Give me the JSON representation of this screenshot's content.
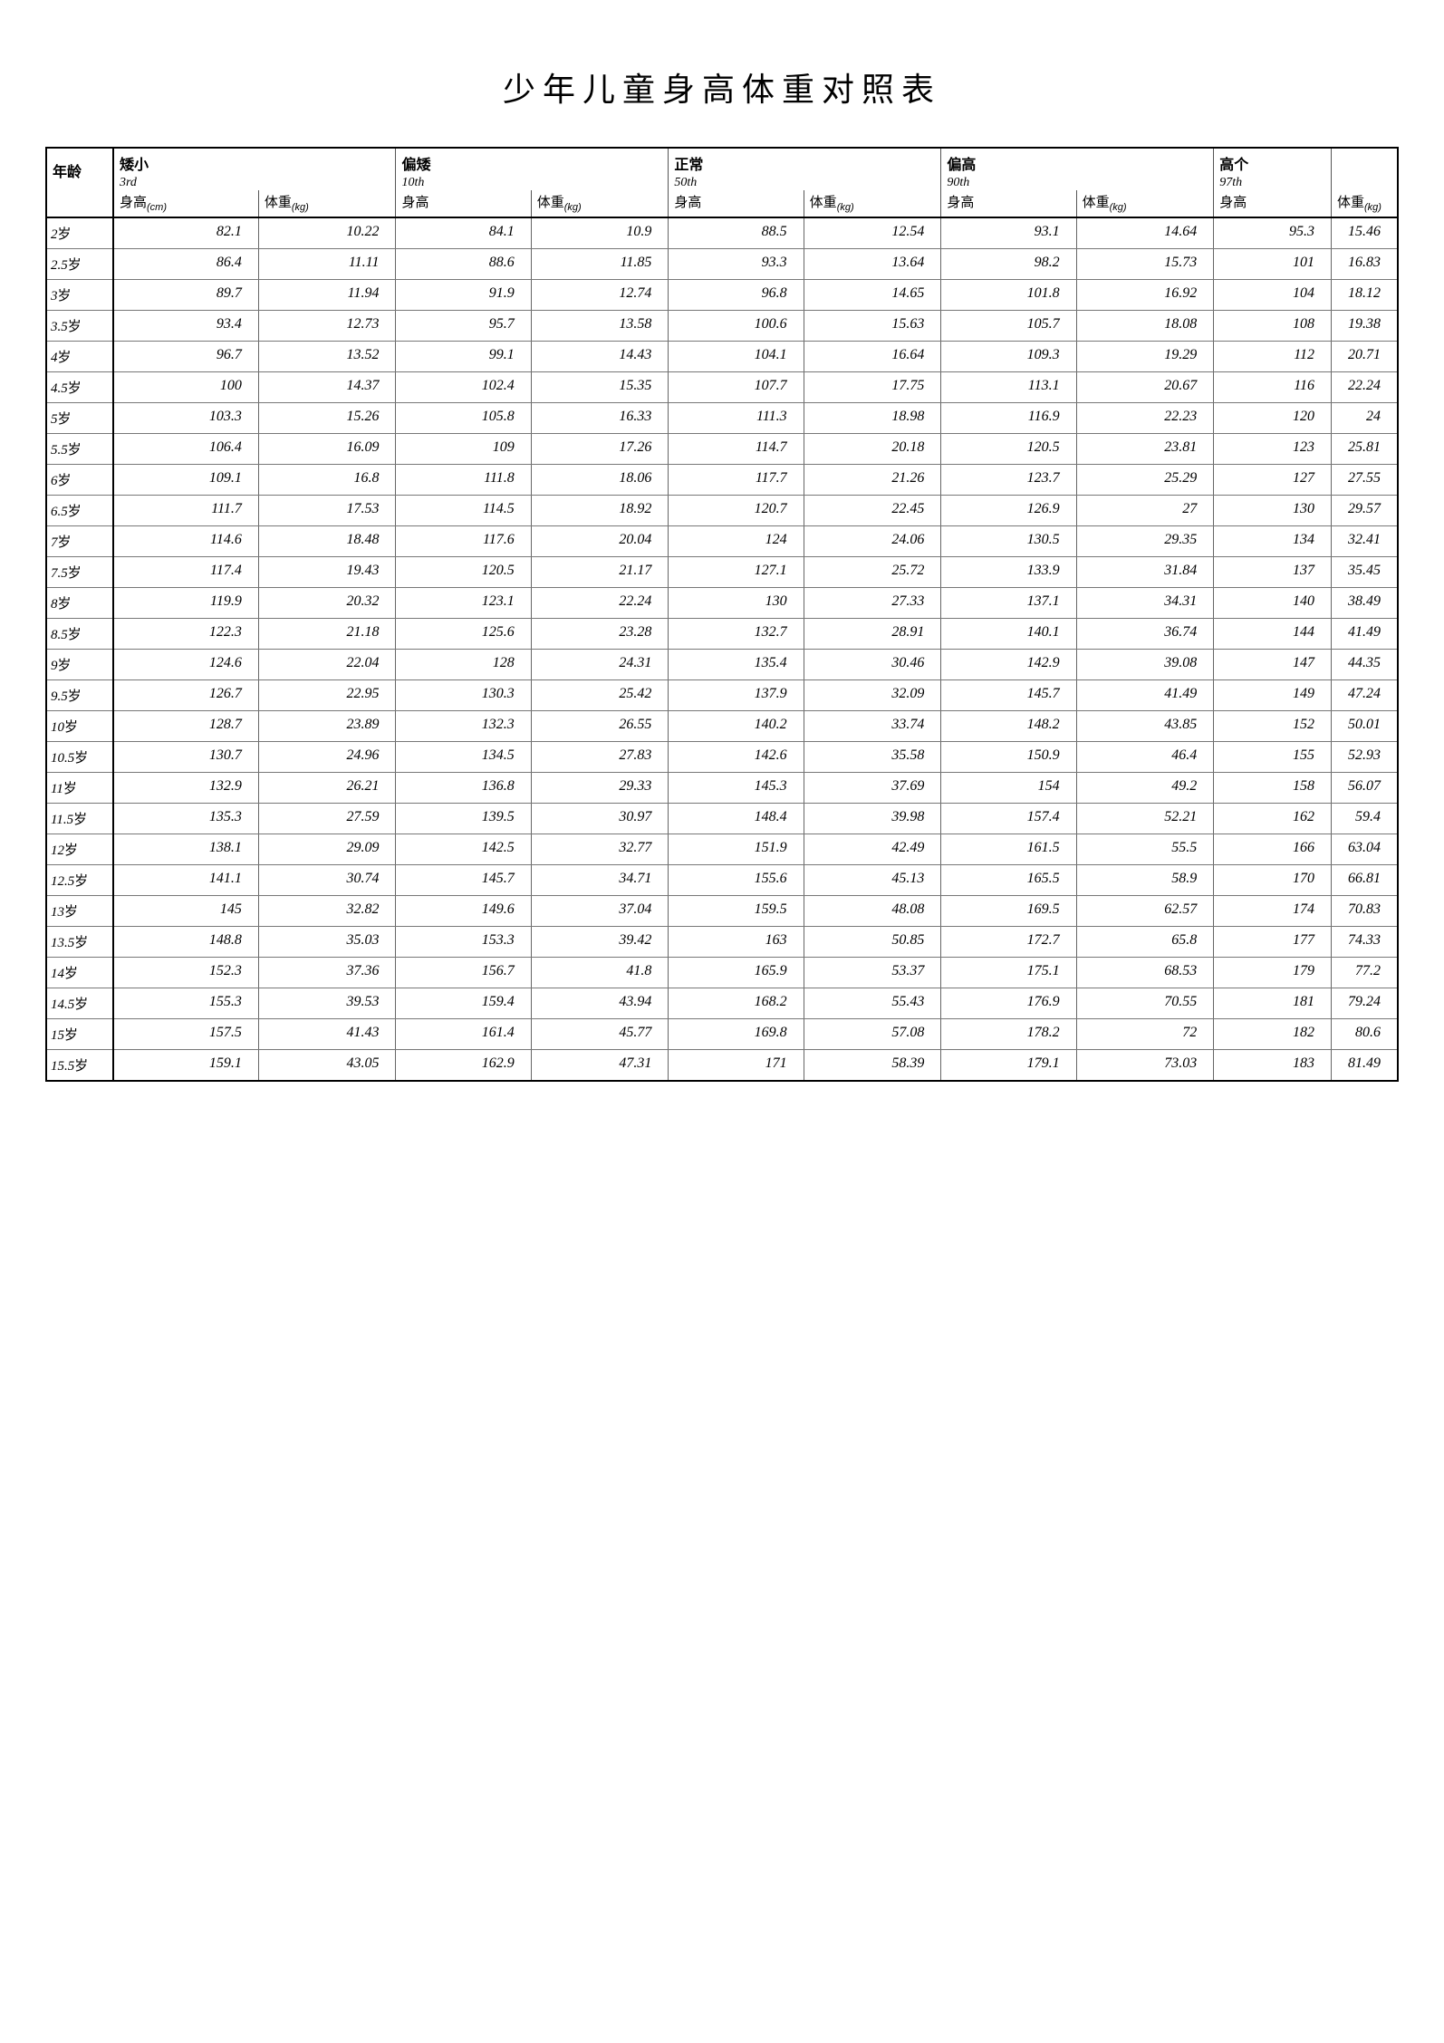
{
  "title": "少年儿童身高体重对照表",
  "headers": {
    "age": "年龄",
    "groups": [
      "矮小",
      "偏矮",
      "正常",
      "偏高",
      "高个"
    ],
    "percentiles": [
      "3rd",
      "10th",
      "50th",
      "90th",
      "97th"
    ],
    "height_cm": "身高",
    "height_cm_unit": "(cm)",
    "weight_kg": "体重",
    "weight_kg_unit": "(kg)",
    "height": "身高"
  },
  "age_suffix": "岁",
  "rows": [
    {
      "age": "2",
      "h1": "82.1",
      "w1": "10.22",
      "h2": "84.1",
      "w2": "10.9",
      "h3": "88.5",
      "w3": "12.54",
      "h4": "93.1",
      "w4": "14.64",
      "h5": "95.3",
      "w5": "15.46"
    },
    {
      "age": "2.5",
      "h1": "86.4",
      "w1": "11.11",
      "h2": "88.6",
      "w2": "11.85",
      "h3": "93.3",
      "w3": "13.64",
      "h4": "98.2",
      "w4": "15.73",
      "h5": "101",
      "w5": "16.83"
    },
    {
      "age": "3",
      "h1": "89.7",
      "w1": "11.94",
      "h2": "91.9",
      "w2": "12.74",
      "h3": "96.8",
      "w3": "14.65",
      "h4": "101.8",
      "w4": "16.92",
      "h5": "104",
      "w5": "18.12"
    },
    {
      "age": "3.5",
      "h1": "93.4",
      "w1": "12.73",
      "h2": "95.7",
      "w2": "13.58",
      "h3": "100.6",
      "w3": "15.63",
      "h4": "105.7",
      "w4": "18.08",
      "h5": "108",
      "w5": "19.38"
    },
    {
      "age": "4",
      "h1": "96.7",
      "w1": "13.52",
      "h2": "99.1",
      "w2": "14.43",
      "h3": "104.1",
      "w3": "16.64",
      "h4": "109.3",
      "w4": "19.29",
      "h5": "112",
      "w5": "20.71"
    },
    {
      "age": "4.5",
      "h1": "100",
      "w1": "14.37",
      "h2": "102.4",
      "w2": "15.35",
      "h3": "107.7",
      "w3": "17.75",
      "h4": "113.1",
      "w4": "20.67",
      "h5": "116",
      "w5": "22.24"
    },
    {
      "age": "5",
      "h1": "103.3",
      "w1": "15.26",
      "h2": "105.8",
      "w2": "16.33",
      "h3": "111.3",
      "w3": "18.98",
      "h4": "116.9",
      "w4": "22.23",
      "h5": "120",
      "w5": "24"
    },
    {
      "age": "5.5",
      "h1": "106.4",
      "w1": "16.09",
      "h2": "109",
      "w2": "17.26",
      "h3": "114.7",
      "w3": "20.18",
      "h4": "120.5",
      "w4": "23.81",
      "h5": "123",
      "w5": "25.81"
    },
    {
      "age": "6",
      "h1": "109.1",
      "w1": "16.8",
      "h2": "111.8",
      "w2": "18.06",
      "h3": "117.7",
      "w3": "21.26",
      "h4": "123.7",
      "w4": "25.29",
      "h5": "127",
      "w5": "27.55"
    },
    {
      "age": "6.5",
      "h1": "111.7",
      "w1": "17.53",
      "h2": "114.5",
      "w2": "18.92",
      "h3": "120.7",
      "w3": "22.45",
      "h4": "126.9",
      "w4": "27",
      "h5": "130",
      "w5": "29.57"
    },
    {
      "age": "7",
      "h1": "114.6",
      "w1": "18.48",
      "h2": "117.6",
      "w2": "20.04",
      "h3": "124",
      "w3": "24.06",
      "h4": "130.5",
      "w4": "29.35",
      "h5": "134",
      "w5": "32.41"
    },
    {
      "age": "7.5",
      "h1": "117.4",
      "w1": "19.43",
      "h2": "120.5",
      "w2": "21.17",
      "h3": "127.1",
      "w3": "25.72",
      "h4": "133.9",
      "w4": "31.84",
      "h5": "137",
      "w5": "35.45"
    },
    {
      "age": "8",
      "h1": "119.9",
      "w1": "20.32",
      "h2": "123.1",
      "w2": "22.24",
      "h3": "130",
      "w3": "27.33",
      "h4": "137.1",
      "w4": "34.31",
      "h5": "140",
      "w5": "38.49"
    },
    {
      "age": "8.5",
      "h1": "122.3",
      "w1": "21.18",
      "h2": "125.6",
      "w2": "23.28",
      "h3": "132.7",
      "w3": "28.91",
      "h4": "140.1",
      "w4": "36.74",
      "h5": "144",
      "w5": "41.49"
    },
    {
      "age": "9",
      "h1": "124.6",
      "w1": "22.04",
      "h2": "128",
      "w2": "24.31",
      "h3": "135.4",
      "w3": "30.46",
      "h4": "142.9",
      "w4": "39.08",
      "h5": "147",
      "w5": "44.35"
    },
    {
      "age": "9.5",
      "h1": "126.7",
      "w1": "22.95",
      "h2": "130.3",
      "w2": "25.42",
      "h3": "137.9",
      "w3": "32.09",
      "h4": "145.7",
      "w4": "41.49",
      "h5": "149",
      "w5": "47.24"
    },
    {
      "age": "10",
      "h1": "128.7",
      "w1": "23.89",
      "h2": "132.3",
      "w2": "26.55",
      "h3": "140.2",
      "w3": "33.74",
      "h4": "148.2",
      "w4": "43.85",
      "h5": "152",
      "w5": "50.01"
    },
    {
      "age": "10.5",
      "h1": "130.7",
      "w1": "24.96",
      "h2": "134.5",
      "w2": "27.83",
      "h3": "142.6",
      "w3": "35.58",
      "h4": "150.9",
      "w4": "46.4",
      "h5": "155",
      "w5": "52.93"
    },
    {
      "age": "11",
      "h1": "132.9",
      "w1": "26.21",
      "h2": "136.8",
      "w2": "29.33",
      "h3": "145.3",
      "w3": "37.69",
      "h4": "154",
      "w4": "49.2",
      "h5": "158",
      "w5": "56.07"
    },
    {
      "age": "11.5",
      "h1": "135.3",
      "w1": "27.59",
      "h2": "139.5",
      "w2": "30.97",
      "h3": "148.4",
      "w3": "39.98",
      "h4": "157.4",
      "w4": "52.21",
      "h5": "162",
      "w5": "59.4"
    },
    {
      "age": "12",
      "h1": "138.1",
      "w1": "29.09",
      "h2": "142.5",
      "w2": "32.77",
      "h3": "151.9",
      "w3": "42.49",
      "h4": "161.5",
      "w4": "55.5",
      "h5": "166",
      "w5": "63.04"
    },
    {
      "age": "12.5",
      "h1": "141.1",
      "w1": "30.74",
      "h2": "145.7",
      "w2": "34.71",
      "h3": "155.6",
      "w3": "45.13",
      "h4": "165.5",
      "w4": "58.9",
      "h5": "170",
      "w5": "66.81"
    },
    {
      "age": "13",
      "h1": "145",
      "w1": "32.82",
      "h2": "149.6",
      "w2": "37.04",
      "h3": "159.5",
      "w3": "48.08",
      "h4": "169.5",
      "w4": "62.57",
      "h5": "174",
      "w5": "70.83"
    },
    {
      "age": "13.5",
      "h1": "148.8",
      "w1": "35.03",
      "h2": "153.3",
      "w2": "39.42",
      "h3": "163",
      "w3": "50.85",
      "h4": "172.7",
      "w4": "65.8",
      "h5": "177",
      "w5": "74.33"
    },
    {
      "age": "14",
      "h1": "152.3",
      "w1": "37.36",
      "h2": "156.7",
      "w2": "41.8",
      "h3": "165.9",
      "w3": "53.37",
      "h4": "175.1",
      "w4": "68.53",
      "h5": "179",
      "w5": "77.2"
    },
    {
      "age": "14.5",
      "h1": "155.3",
      "w1": "39.53",
      "h2": "159.4",
      "w2": "43.94",
      "h3": "168.2",
      "w3": "55.43",
      "h4": "176.9",
      "w4": "70.55",
      "h5": "181",
      "w5": "79.24"
    },
    {
      "age": "15",
      "h1": "157.5",
      "w1": "41.43",
      "h2": "161.4",
      "w2": "45.77",
      "h3": "169.8",
      "w3": "57.08",
      "h4": "178.2",
      "w4": "72",
      "h5": "182",
      "w5": "80.6"
    },
    {
      "age": "15.5",
      "h1": "159.1",
      "w1": "43.05",
      "h2": "162.9",
      "w2": "47.31",
      "h3": "171",
      "w3": "58.39",
      "h4": "179.1",
      "w4": "73.03",
      "h5": "183",
      "w5": "81.49"
    }
  ],
  "style": {
    "title_fontsize": 36,
    "body_fontsize": 16,
    "border_color": "#000000",
    "inner_border_color": "#777777",
    "background": "#ffffff",
    "text_color": "#000000"
  }
}
